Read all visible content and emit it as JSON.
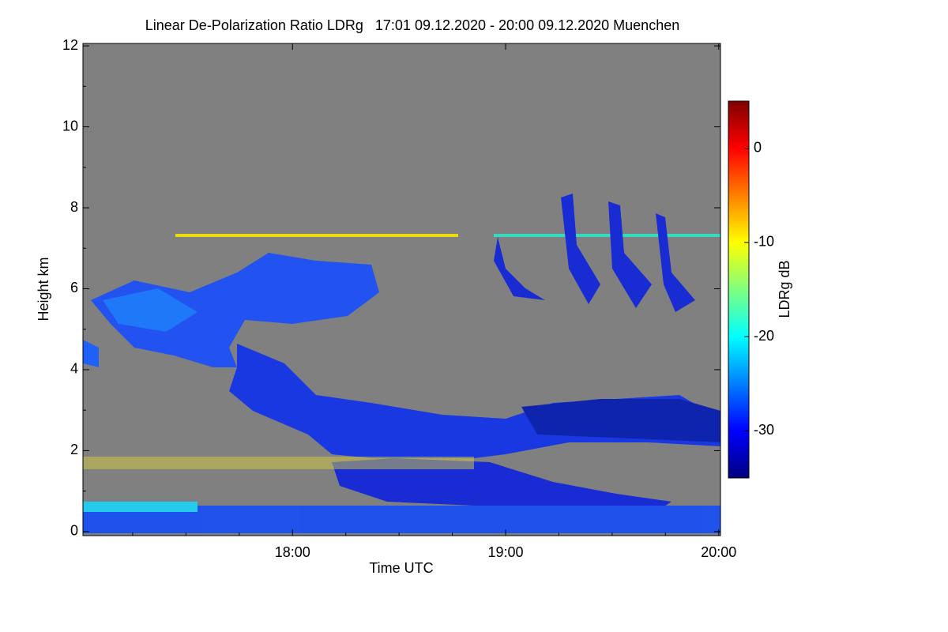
{
  "chart_data": {
    "type": "heatmap",
    "title": "Linear De-Polarization Ratio LDRg   17:01 09.12.2020 - 20:00 09.12.2020 Muenchen",
    "x_label": "Time UTC",
    "y_label": "Height km",
    "colorbar_label": "LDRg dB",
    "xlim": [
      17.0167,
      20.0083
    ],
    "xticks": [
      {
        "value": 18,
        "label": "18:00"
      },
      {
        "value": 19,
        "label": "19:00"
      },
      {
        "value": 20,
        "label": "20:00"
      }
    ],
    "xminorticks": [
      17.25,
      17.5,
      17.75,
      18.25,
      18.5,
      18.75,
      19.25,
      19.5,
      19.75
    ],
    "ylim": [
      -0.1,
      12.06
    ],
    "yticks": [
      0,
      2,
      4,
      6,
      8,
      10,
      12
    ],
    "yminorticks": [
      1,
      3,
      5,
      7,
      9,
      11
    ],
    "clim": [
      -35,
      5
    ],
    "cticks": [
      0,
      -10,
      -20,
      -30
    ],
    "background": "#808080",
    "colormap": [
      "#00007f",
      "#0000ff",
      "#007fff",
      "#00ffff",
      "#7fff7f",
      "#ffff00",
      "#ff7f00",
      "#ff0000",
      "#7f0000"
    ]
  }
}
